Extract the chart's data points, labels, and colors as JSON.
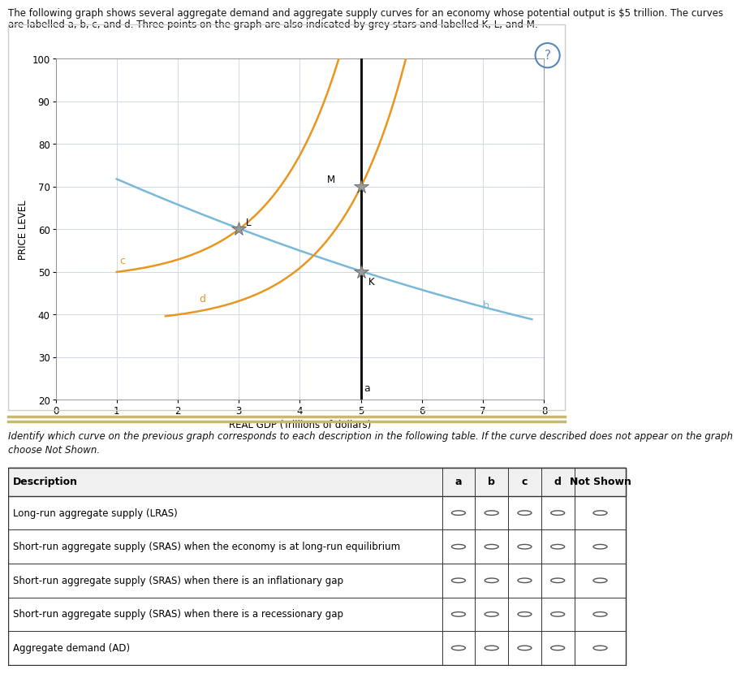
{
  "page_title_line1": "The following graph shows several aggregate demand and aggregate supply curves for an economy whose potential output is $5 trillion. The curves",
  "page_title_line2": "are labelled a, b, c, and d. Three points on the graph are also indicated by grey stars and labelled K, L, and M.",
  "xlabel": "REAL GDP (Trillions of dollars)",
  "ylabel": "PRICE LEVEL",
  "xlim": [
    0,
    8
  ],
  "ylim": [
    20,
    100
  ],
  "xticks": [
    0,
    1,
    2,
    3,
    4,
    5,
    6,
    7,
    8
  ],
  "yticks": [
    20,
    30,
    40,
    50,
    60,
    70,
    80,
    90,
    100
  ],
  "lras_x": 5,
  "lras_color": "#111111",
  "lras_label": "a",
  "curve_b_color": "#7ab8d9",
  "curve_b_label": "b",
  "curve_c_color": "#e8961e",
  "curve_c_label": "c",
  "curve_d_color": "#e8961e",
  "curve_d_label": "d",
  "star_color": "#999999",
  "star_edge_color": "#555555",
  "point_K": [
    5,
    50
  ],
  "point_L": [
    3,
    60
  ],
  "point_M": [
    5,
    70
  ],
  "bg_outer": "#ffffff",
  "bg_chart": "#ffffff",
  "grid_color": "#d0d8e8",
  "separator_color": "#c8b870",
  "table_header": [
    "Description",
    "a",
    "b",
    "c",
    "d",
    "Not Shown"
  ],
  "table_rows": [
    "Long-run aggregate supply (LRAS)",
    "Short-run aggregate supply (SRAS) when the economy is at long-run equilibrium",
    "Short-run aggregate supply (SRAS) when there is an inflationary gap",
    "Short-run aggregate supply (SRAS) when there is a recessionary gap",
    "Aggregate demand (AD)"
  ],
  "instr_line1": "Identify which curve on the previous graph corresponds to each description in the following table. If the curve described does not appear on the graph",
  "instr_line2": "choose Not Shown."
}
